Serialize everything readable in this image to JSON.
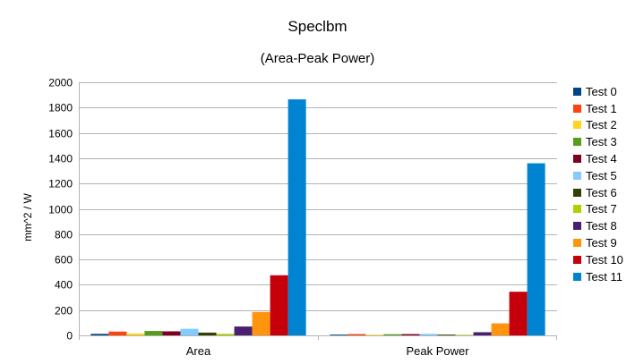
{
  "chart_data": {
    "type": "bar",
    "title": "Speclbm",
    "subtitle": "(Area-Peak Power)",
    "xlabel": "",
    "ylabel": "mm^2 / W",
    "ylim": [
      0,
      2000
    ],
    "yticks": [
      0,
      200,
      400,
      600,
      800,
      1000,
      1200,
      1400,
      1600,
      1800,
      2000
    ],
    "grid": "horizontal",
    "legend_position": "right",
    "categories": [
      "Area",
      "Peak Power"
    ],
    "series": [
      {
        "name": "Test 0",
        "color": "#004586",
        "values": [
          12,
          6
        ]
      },
      {
        "name": "Test 1",
        "color": "#ff420e",
        "values": [
          30,
          10
        ]
      },
      {
        "name": "Test 2",
        "color": "#ffd320",
        "values": [
          15,
          5
        ]
      },
      {
        "name": "Test 3",
        "color": "#579d1c",
        "values": [
          35,
          9
        ]
      },
      {
        "name": "Test 4",
        "color": "#7e0021",
        "values": [
          32,
          10
        ]
      },
      {
        "name": "Test 5",
        "color": "#83caff",
        "values": [
          52,
          12
        ]
      },
      {
        "name": "Test 6",
        "color": "#314004",
        "values": [
          22,
          6
        ]
      },
      {
        "name": "Test 7",
        "color": "#aecf00",
        "values": [
          12,
          4
        ]
      },
      {
        "name": "Test 8",
        "color": "#4b1f6f",
        "values": [
          70,
          25
        ]
      },
      {
        "name": "Test 9",
        "color": "#ff950e",
        "values": [
          185,
          95
        ]
      },
      {
        "name": "Test 10",
        "color": "#c5000b",
        "values": [
          475,
          345
        ]
      },
      {
        "name": "Test 11",
        "color": "#0084d1",
        "values": [
          1865,
          1360
        ]
      }
    ]
  }
}
